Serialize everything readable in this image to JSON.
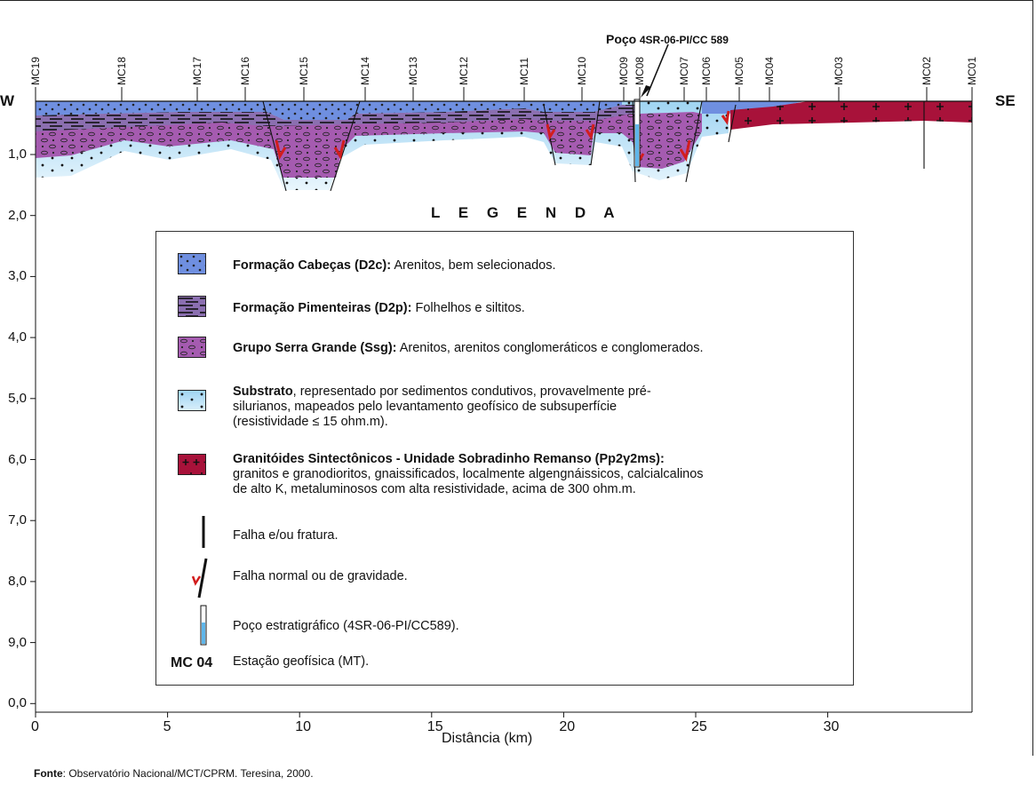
{
  "section": {
    "side_left": "W",
    "side_right": "SE",
    "well_label_bold": "Poço",
    "well_label_code": "4SR-06-PI/CC 589",
    "stations": [
      "MC19",
      "MC18",
      "MC17",
      "MC16",
      "MC15",
      "MC14",
      "MC13",
      "MC12",
      "MC11",
      "MC10",
      "MC09",
      "MC08",
      "MC07",
      "MC06",
      "MC05",
      "MC04",
      "MC03",
      "MC02",
      "MC01"
    ],
    "x_axis": {
      "label": "Distância (km)",
      "ticks": [
        "0",
        "5",
        "10",
        "15",
        "20",
        "25",
        "30"
      ]
    },
    "y_axis": {
      "ticks": [
        "1,0",
        "2,0",
        "3,0",
        "4,0",
        "5,0",
        "6,0",
        "7,0",
        "8,0",
        "9,0",
        "0,0"
      ]
    }
  },
  "legend": {
    "title": "L E G E N D A",
    "items": [
      {
        "bold": "Formação Cabeças (D2c):",
        "text": " Arenitos, bem selecionados."
      },
      {
        "bold": "Formação Pimenteiras (D2p):",
        "text": " Folhelhos e siltitos."
      },
      {
        "bold": "Grupo Serra Grande (Ssg):",
        "text": " Arenitos, arenitos conglomeráticos  e conglomerados."
      },
      {
        "bold": "Substrato",
        "text": ", representado por sedimentos condutivos, provavelmente pré-",
        "line2": "silurianos, mapeados pelo levantamento   geofísico  de  subsuperfície",
        "line3": "(resistividade  ≤ 15 ohm.m)."
      },
      {
        "bold": "Granitóides Sintectônicos  -  Unidade Sobradinho Remanso  (Pp2γ2ms):",
        "line2": "granitos e granodioritos, gnaissificados, localmente algengnáissicos, calcialcalinos",
        "line3": "de alto K, metaluminosos com alta resistividade, acima de 300 ohm.m."
      },
      {
        "text": "Falha  e/ou fratura."
      },
      {
        "text": "Falha  normal ou de gravidade."
      },
      {
        "text": "Poço estratigráfico (4SR-06-PI/CC589)."
      },
      {
        "bold": "MC 04",
        "text": "Estação geofísica (MT)."
      }
    ]
  },
  "source": {
    "bold": "Fonte",
    "text": ": Observatório Nacional/MCT/CPRM. Teresina, 2000."
  },
  "colors": {
    "cabecas": "#6f8fe0",
    "pimenteiras": "#8b6fb0",
    "serra_grande": "#a55bb0",
    "substrato": "#bfe3f7",
    "granito": "#a8123a",
    "fault_arrow": "#d21d1d"
  }
}
